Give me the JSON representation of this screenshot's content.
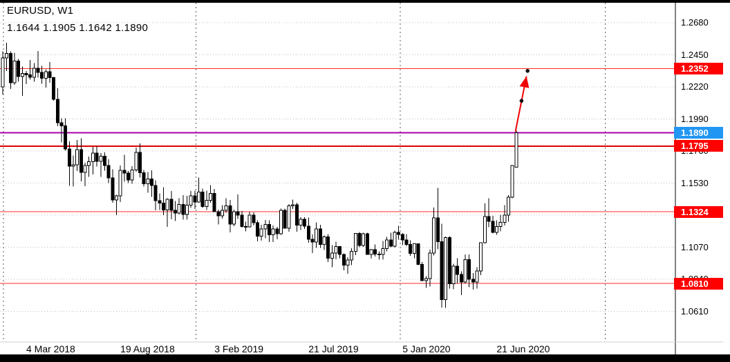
{
  "header": {
    "symbol_title": "EURUSD, W1",
    "quote_line": "1.1644 1.1905 1.1642 1.1890"
  },
  "chart_data": {
    "type": "candlestick",
    "symbol": "EURUSD",
    "timeframe": "W1",
    "ohlc_display": {
      "open": "1.1644",
      "high": "1.1905",
      "low": "1.1642",
      "close": "1.1890"
    },
    "y_axis": {
      "start": 1.268,
      "step": 0.023,
      "count": 10,
      "decimals": 4
    },
    "y_range": [
      1.061,
      1.268
    ],
    "x_ticks": [
      {
        "index": 6,
        "label": "4 Mar 2018"
      },
      {
        "index": 30,
        "label": "19 Aug 2018"
      },
      {
        "index": 54,
        "label": "3 Feb 2019"
      },
      {
        "index": 78,
        "label": "21 Jul 2019"
      },
      {
        "index": 102,
        "label": "5 Jan 2020"
      },
      {
        "index": 126,
        "label": "21 Jun 2020"
      }
    ],
    "year_separators_index": [
      0.2,
      49.3,
      101.4,
      153.7
    ],
    "levels": [
      {
        "price": 1.2352,
        "label": "1.2352",
        "line_color": "#ff2a2a",
        "line_width": 1,
        "tag_color": "#ff0000"
      },
      {
        "price": 1.189,
        "label": "1.1890",
        "line_color": "#aa00aa",
        "line_width": 2,
        "tag_color": "#2196f3"
      },
      {
        "price": 1.1795,
        "label": "1.1795",
        "line_color": "#dd0000",
        "line_width": 2,
        "tag_color": "#ff0000"
      },
      {
        "price": 1.1324,
        "label": "1.1324",
        "line_color": "#ff2a2a",
        "line_width": 1,
        "tag_color": "#ff0000"
      },
      {
        "price": 1.081,
        "label": "1.0810",
        "line_color": "#ff2a2a",
        "line_width": 1,
        "tag_color": "#ff0000"
      }
    ],
    "annotations": {
      "arrow": {
        "from": {
          "index": 130.8,
          "price": 1.19
        },
        "to": {
          "index": 133.9,
          "price": 1.2335
        },
        "color": "#f00000"
      },
      "dots": [
        {
          "index": 132.35,
          "price": 1.212
        },
        {
          "index": 133.9,
          "price": 1.2335
        }
      ]
    },
    "candles": [
      [
        1.222,
        1.2475,
        1.2165,
        1.2427
      ],
      [
        1.2427,
        1.2537,
        1.2335,
        1.2461
      ],
      [
        1.2461,
        1.2475,
        1.2205,
        1.225
      ],
      [
        1.225,
        1.2465,
        1.2235,
        1.2406
      ],
      [
        1.2406,
        1.242,
        1.2258,
        1.2295
      ],
      [
        1.2295,
        1.2365,
        1.2155,
        1.2316
      ],
      [
        1.2316,
        1.2335,
        1.224,
        1.2307
      ],
      [
        1.2307,
        1.2413,
        1.2272,
        1.229
      ],
      [
        1.229,
        1.239,
        1.2258,
        1.2354
      ],
      [
        1.2354,
        1.2476,
        1.2286,
        1.2325
      ],
      [
        1.2325,
        1.237,
        1.2243,
        1.2281
      ],
      [
        1.2281,
        1.2345,
        1.2215,
        1.233
      ],
      [
        1.233,
        1.2398,
        1.225,
        1.2288
      ],
      [
        1.2288,
        1.2291,
        1.2121,
        1.2131
      ],
      [
        1.2131,
        1.221,
        1.1938,
        1.1963
      ],
      [
        1.1963,
        1.1996,
        1.1823,
        1.1941
      ],
      [
        1.1941,
        1.1995,
        1.1763,
        1.1774
      ],
      [
        1.1774,
        1.183,
        1.151,
        1.165
      ],
      [
        1.165,
        1.1728,
        1.1506,
        1.166
      ],
      [
        1.166,
        1.184,
        1.1617,
        1.177
      ],
      [
        1.177,
        1.1852,
        1.1543,
        1.1607
      ],
      [
        1.1607,
        1.1675,
        1.1508,
        1.1655
      ],
      [
        1.1655,
        1.1721,
        1.1575,
        1.1684
      ],
      [
        1.1684,
        1.179,
        1.1591,
        1.1744
      ],
      [
        1.1744,
        1.1795,
        1.1649,
        1.1687
      ],
      [
        1.1687,
        1.1745,
        1.1575,
        1.1724
      ],
      [
        1.1724,
        1.175,
        1.162,
        1.1657
      ],
      [
        1.1657,
        1.17,
        1.153,
        1.1566
      ],
      [
        1.1566,
        1.1628,
        1.139,
        1.141
      ],
      [
        1.141,
        1.1445,
        1.1301,
        1.1438
      ],
      [
        1.1438,
        1.1655,
        1.1395,
        1.1622
      ],
      [
        1.1622,
        1.1733,
        1.1541,
        1.1601
      ],
      [
        1.1601,
        1.1617,
        1.153,
        1.1552
      ],
      [
        1.1552,
        1.165,
        1.1526,
        1.1625
      ],
      [
        1.1625,
        1.1785,
        1.1611,
        1.1751
      ],
      [
        1.1751,
        1.1815,
        1.1569,
        1.1604
      ],
      [
        1.1604,
        1.1625,
        1.1505,
        1.1525
      ],
      [
        1.1525,
        1.161,
        1.146,
        1.156
      ],
      [
        1.156,
        1.1622,
        1.1432,
        1.1513
      ],
      [
        1.1513,
        1.155,
        1.1335,
        1.1403
      ],
      [
        1.1403,
        1.1456,
        1.1336,
        1.1387
      ],
      [
        1.1387,
        1.15,
        1.1301,
        1.1336
      ],
      [
        1.1336,
        1.1422,
        1.1216,
        1.1415
      ],
      [
        1.1415,
        1.1472,
        1.127,
        1.1335
      ],
      [
        1.1335,
        1.1401,
        1.1258,
        1.1316
      ],
      [
        1.1316,
        1.142,
        1.1305,
        1.1377
      ],
      [
        1.1377,
        1.1443,
        1.1267,
        1.1306
      ],
      [
        1.1306,
        1.1439,
        1.1269,
        1.1371
      ],
      [
        1.1371,
        1.1473,
        1.1352,
        1.1438
      ],
      [
        1.1438,
        1.1475,
        1.1345,
        1.1395
      ],
      [
        1.1395,
        1.157,
        1.139,
        1.1466
      ],
      [
        1.1466,
        1.1491,
        1.1353,
        1.1362
      ],
      [
        1.1362,
        1.1475,
        1.1336,
        1.1406
      ],
      [
        1.1406,
        1.1515,
        1.139,
        1.1456
      ],
      [
        1.1456,
        1.1489,
        1.1323,
        1.1324
      ],
      [
        1.1324,
        1.134,
        1.1234,
        1.1295
      ],
      [
        1.1295,
        1.1371,
        1.1275,
        1.1335
      ],
      [
        1.1335,
        1.142,
        1.1317,
        1.1366
      ],
      [
        1.1366,
        1.1409,
        1.1176,
        1.1235
      ],
      [
        1.1235,
        1.1339,
        1.1221,
        1.1325
      ],
      [
        1.1325,
        1.1448,
        1.1273,
        1.1301
      ],
      [
        1.1301,
        1.133,
        1.1212,
        1.1218
      ],
      [
        1.1218,
        1.1254,
        1.1183,
        1.1216
      ],
      [
        1.1216,
        1.1324,
        1.121,
        1.1299
      ],
      [
        1.1299,
        1.132,
        1.1226,
        1.1245
      ],
      [
        1.1245,
        1.1264,
        1.1112,
        1.115
      ],
      [
        1.115,
        1.123,
        1.1118,
        1.12
      ],
      [
        1.12,
        1.1265,
        1.1135,
        1.1234
      ],
      [
        1.1234,
        1.1263,
        1.1106,
        1.1158
      ],
      [
        1.1158,
        1.1226,
        1.1107,
        1.1201
      ],
      [
        1.1201,
        1.1215,
        1.1126,
        1.1167
      ],
      [
        1.1167,
        1.1348,
        1.116,
        1.1334
      ],
      [
        1.1334,
        1.1347,
        1.1203,
        1.1207
      ],
      [
        1.1207,
        1.1379,
        1.1181,
        1.1368
      ],
      [
        1.1368,
        1.1412,
        1.1344,
        1.1373
      ],
      [
        1.1373,
        1.139,
        1.1181,
        1.1228
      ],
      [
        1.1228,
        1.1286,
        1.1193,
        1.127
      ],
      [
        1.127,
        1.1285,
        1.1202,
        1.1221
      ],
      [
        1.1221,
        1.1282,
        1.1101,
        1.1128
      ],
      [
        1.1128,
        1.1162,
        1.1027,
        1.1108
      ],
      [
        1.1108,
        1.1249,
        1.1065,
        1.12
      ],
      [
        1.12,
        1.123,
        1.1066,
        1.109
      ],
      [
        1.109,
        1.1153,
        1.1051,
        1.1144
      ],
      [
        1.1144,
        1.1164,
        1.0963,
        1.099
      ],
      [
        1.099,
        1.1085,
        1.0926,
        1.1028
      ],
      [
        1.1028,
        1.111,
        1.0983,
        1.1074
      ],
      [
        1.1074,
        1.1076,
        1.099,
        1.1017
      ],
      [
        1.1017,
        1.1025,
        1.0905,
        1.0941
      ],
      [
        1.0941,
        1.0999,
        1.0879,
        1.0979
      ],
      [
        1.0979,
        1.1063,
        1.0941,
        1.104
      ],
      [
        1.104,
        1.1172,
        1.1012,
        1.117
      ],
      [
        1.117,
        1.1179,
        1.107,
        1.1082
      ],
      [
        1.1082,
        1.1175,
        1.1073,
        1.1166
      ],
      [
        1.1166,
        1.1175,
        1.1016,
        1.1018
      ],
      [
        1.1018,
        1.1058,
        1.0989,
        1.1052
      ],
      [
        1.1052,
        1.109,
        1.1003,
        1.1021
      ],
      [
        1.1021,
        1.104,
        1.0981,
        1.1018
      ],
      [
        1.1018,
        1.1115,
        1.0981,
        1.106
      ],
      [
        1.106,
        1.1145,
        1.104,
        1.1122
      ],
      [
        1.1122,
        1.1174,
        1.107,
        1.1078
      ],
      [
        1.1078,
        1.1188,
        1.1067,
        1.1177
      ],
      [
        1.1177,
        1.1224,
        1.1124,
        1.1161
      ],
      [
        1.1161,
        1.1172,
        1.1085,
        1.1122
      ],
      [
        1.1122,
        1.1164,
        1.1077,
        1.109
      ],
      [
        1.109,
        1.1119,
        1.1008,
        1.1025
      ],
      [
        1.1025,
        1.1095,
        1.0992,
        1.1094
      ],
      [
        1.1094,
        1.1096,
        1.0941,
        1.0946
      ],
      [
        1.0946,
        1.0964,
        1.0827,
        1.0831
      ],
      [
        1.0831,
        1.0862,
        1.0778,
        1.0846
      ],
      [
        1.0846,
        1.1053,
        1.0788,
        1.1027
      ],
      [
        1.1027,
        1.1355,
        1.101,
        1.128
      ],
      [
        1.128,
        1.1495,
        1.1054,
        1.1109
      ],
      [
        1.1109,
        1.1237,
        1.0636,
        1.0694
      ],
      [
        1.0694,
        1.1147,
        1.0635,
        1.114
      ],
      [
        1.114,
        1.1148,
        1.0772,
        1.0808
      ],
      [
        1.0808,
        1.0951,
        1.0768,
        1.0935
      ],
      [
        1.0935,
        1.099,
        1.0811,
        1.0875
      ],
      [
        1.0875,
        1.0898,
        1.0727,
        1.082
      ],
      [
        1.082,
        1.1019,
        1.081,
        1.098
      ],
      [
        1.098,
        1.1017,
        1.0782,
        1.084
      ],
      [
        1.084,
        1.0885,
        1.0766,
        1.082
      ],
      [
        1.082,
        1.0927,
        1.0774,
        1.09
      ],
      [
        1.09,
        1.1101,
        1.087,
        1.1101
      ],
      [
        1.1101,
        1.1383,
        1.1097,
        1.1291
      ],
      [
        1.1291,
        1.1422,
        1.1213,
        1.1256
      ],
      [
        1.1256,
        1.1296,
        1.1168,
        1.1177
      ],
      [
        1.1177,
        1.1262,
        1.116,
        1.1219
      ],
      [
        1.1219,
        1.1302,
        1.1184,
        1.1248
      ],
      [
        1.1248,
        1.1371,
        1.1226,
        1.13
      ],
      [
        1.13,
        1.1444,
        1.1254,
        1.1428
      ],
      [
        1.1428,
        1.1659,
        1.1422,
        1.1656
      ],
      [
        1.1644,
        1.1905,
        1.1642,
        1.189
      ]
    ]
  }
}
